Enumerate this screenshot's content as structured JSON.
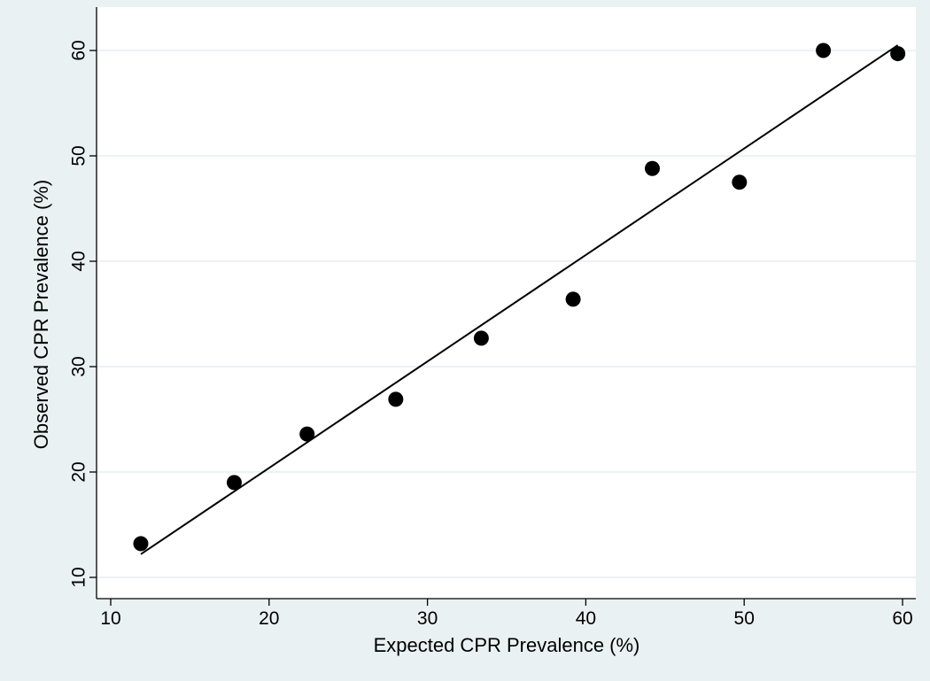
{
  "chart_data": {
    "type": "scatter",
    "title": "",
    "xlabel": "Expected CPR Prevalence (%)",
    "ylabel": "Observed CPR Prevalence (%)",
    "xlim": [
      10,
      60
    ],
    "ylim": [
      10,
      60
    ],
    "xticks": [
      10,
      20,
      30,
      40,
      50,
      60
    ],
    "yticks": [
      10,
      20,
      30,
      40,
      50,
      60
    ],
    "grid": true,
    "legend": "none",
    "series": [
      {
        "type": "scatter",
        "x": [
          11.9,
          17.8,
          22.4,
          28.0,
          33.4,
          39.2,
          44.2,
          49.7,
          55.0,
          59.7
        ],
        "y": [
          13.2,
          19.0,
          23.6,
          26.9,
          32.7,
          36.4,
          48.8,
          47.5,
          60.0,
          59.7
        ]
      },
      {
        "type": "line",
        "x": [
          11.9,
          59.7
        ],
        "y": [
          12.2,
          60.5
        ]
      }
    ],
    "colors": {
      "background": "#eaf1f3",
      "plot_area": "#ffffff",
      "grid": "#e6eef0",
      "marker": "#000000",
      "line": "#000000"
    }
  }
}
